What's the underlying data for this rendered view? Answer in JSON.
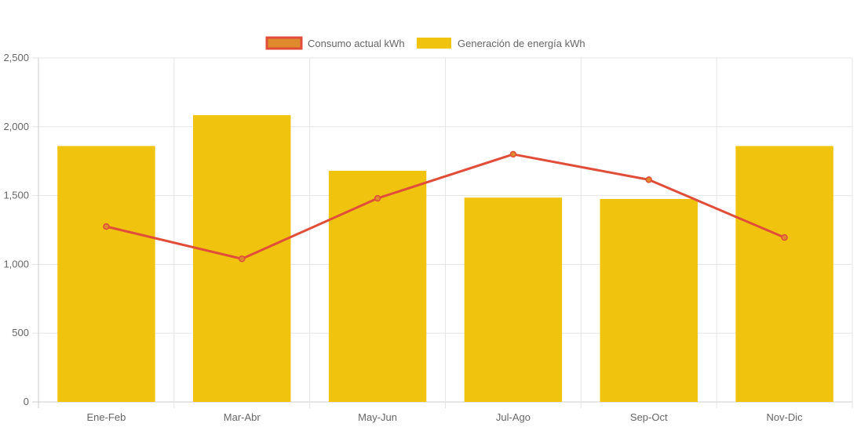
{
  "chart_data": {
    "type": "bar",
    "categories": [
      "Ene-Feb",
      "Mar-Abr",
      "May-Jun",
      "Jul-Ago",
      "Sep-Oct",
      "Nov-Dic"
    ],
    "series": [
      {
        "name": "Consumo actual kWh",
        "type": "line",
        "values": [
          1275,
          1040,
          1480,
          1800,
          1615,
          1195
        ],
        "color": "#e04e39",
        "fill": "#e08a2e"
      },
      {
        "name": "Generación de energía kWh",
        "type": "bar",
        "values": [
          1860,
          2085,
          1680,
          1485,
          1475,
          1860
        ],
        "color": "#f0c30f"
      }
    ],
    "ylim": [
      0,
      2500
    ],
    "yticks": [
      "0",
      "500",
      "1,000",
      "1,500",
      "2,000",
      "2,500"
    ],
    "grid": true,
    "legend": "top-center"
  }
}
